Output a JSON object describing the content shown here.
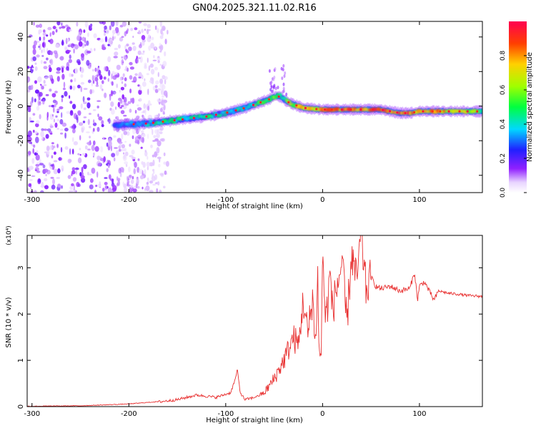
{
  "figure_title": "GN04.2025.321.11.02.R16",
  "chart_data": [
    {
      "type": "heatmap",
      "title": "GN04.2025.321.11.02.R16",
      "xlabel": "Height of straight line (km)",
      "ylabel": "Frequency (Hz)",
      "xlim": [
        -305,
        165
      ],
      "ylim": [
        -50,
        49
      ],
      "xticks": [
        -300,
        -200,
        -100,
        0,
        100
      ],
      "yticks": [
        -40,
        -20,
        0,
        20,
        40
      ],
      "colorbar": {
        "label": "Normalized spectral amplitude",
        "range": [
          0,
          1
        ],
        "ticks": [
          0.0,
          0.2,
          0.4,
          0.6,
          0.8
        ],
        "tick_labels": [
          "0.0",
          "0.2",
          "0.4",
          "0.6",
          "0.8"
        ]
      },
      "noise_region_km": [
        -305,
        -185
      ],
      "ridge": {
        "description": "dominant spectral line (frequency vs height)",
        "height_km": [
          -215,
          -180,
          -150,
          -120,
          -100,
          -80,
          -65,
          -55,
          -48,
          -42,
          -38,
          -30,
          -20,
          -10,
          0,
          30,
          60,
          70,
          80,
          90,
          100,
          110,
          130,
          165
        ],
        "frequency_hz": [
          -11,
          -10,
          -8,
          -6,
          -4,
          -1,
          2,
          4,
          6,
          5,
          3,
          1,
          -1,
          -1.5,
          -2,
          -2,
          -2,
          -3,
          -4,
          -4,
          -3,
          -3,
          -3,
          -3
        ],
        "amplitude": [
          0.35,
          0.45,
          0.5,
          0.5,
          0.45,
          0.5,
          0.6,
          0.55,
          0.6,
          0.55,
          0.6,
          0.7,
          0.85,
          0.85,
          0.9,
          0.95,
          1.0,
          1.0,
          0.95,
          1.0,
          0.8,
          0.95,
          0.85,
          0.6
        ]
      }
    },
    {
      "type": "line",
      "xlabel": "Height of straight line (km)",
      "ylabel": "SNR (10 * v/v)",
      "scale_label": "(x10⁴)",
      "xlim": [
        -305,
        165
      ],
      "ylim": [
        0,
        3.7
      ],
      "xticks": [
        -300,
        -200,
        -100,
        0,
        100
      ],
      "yticks": [
        0,
        1,
        2,
        3
      ],
      "color": "#e83030",
      "series": [
        {
          "name": "SNR",
          "x": [
            -305,
            -250,
            -200,
            -170,
            -150,
            -130,
            -110,
            -95,
            -90,
            -88,
            -85,
            -80,
            -70,
            -60,
            -50,
            -40,
            -30,
            -25,
            -20,
            -15,
            -10,
            -8,
            -5,
            -3,
            -1,
            0,
            3,
            5,
            8,
            10,
            15,
            20,
            25,
            30,
            35,
            40,
            45,
            50,
            55,
            60,
            70,
            80,
            90,
            95,
            98,
            100,
            105,
            110,
            115,
            120,
            130,
            140,
            150,
            165
          ],
          "y": [
            0.0,
            0.01,
            0.05,
            0.1,
            0.15,
            0.25,
            0.2,
            0.3,
            0.6,
            0.8,
            0.3,
            0.15,
            0.2,
            0.3,
            0.6,
            1.0,
            1.5,
            1.3,
            2.3,
            1.5,
            2.5,
            1.2,
            2.8,
            0.8,
            1.5,
            3.5,
            1.8,
            2.2,
            2.9,
            2.1,
            2.6,
            3.1,
            1.8,
            3.3,
            2.7,
            3.7,
            2.5,
            2.8,
            2.6,
            2.55,
            2.6,
            2.5,
            2.55,
            2.9,
            2.3,
            2.6,
            2.7,
            2.5,
            2.3,
            2.5,
            2.45,
            2.43,
            2.4,
            2.38
          ]
        }
      ]
    }
  ]
}
